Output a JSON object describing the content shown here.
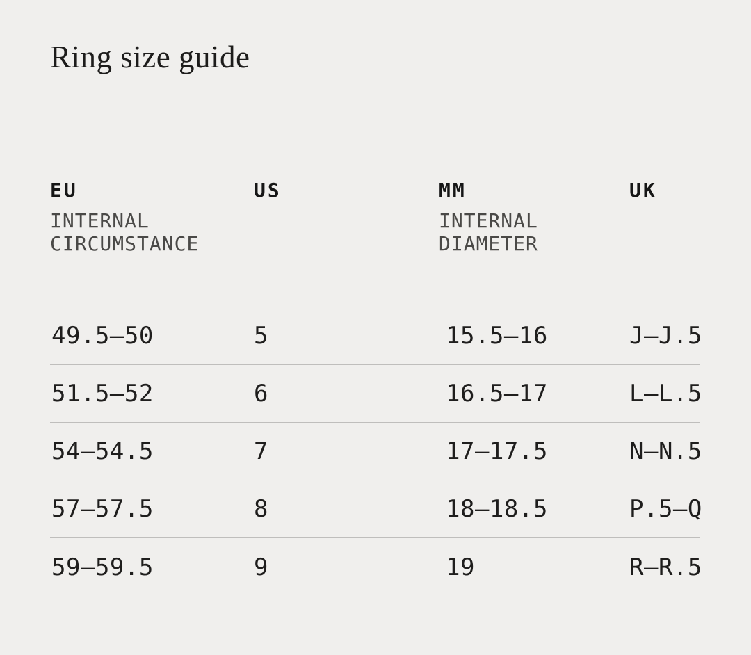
{
  "page": {
    "title": "Ring size guide",
    "background_color": "#f0efed",
    "divider_color": "#bfbebc",
    "text_color": "#1d1c1b"
  },
  "table": {
    "columns": [
      {
        "key": "eu",
        "label": "EU",
        "sublabel": "INTERNAL\nCIRCUMSTANCE"
      },
      {
        "key": "us",
        "label": "US",
        "sublabel": ""
      },
      {
        "key": "mm",
        "label": "MM",
        "sublabel": "INTERNAL\nDIAMETER"
      },
      {
        "key": "uk",
        "label": "UK",
        "sublabel": ""
      }
    ],
    "rows": [
      {
        "eu": "49.5—50",
        "us": "5",
        "mm": "15.5—16",
        "uk": "J—J.5"
      },
      {
        "eu": "51.5—52",
        "us": "6",
        "mm": "16.5—17",
        "uk": "L—L.5"
      },
      {
        "eu": "54—54.5",
        "us": "7",
        "mm": "17—17.5",
        "uk": "N—N.5"
      },
      {
        "eu": "57—57.5",
        "us": "8",
        "mm": "18—18.5",
        "uk": "P.5—Q"
      },
      {
        "eu": "59—59.5",
        "us": "9",
        "mm": "19",
        "uk": "R—R.5"
      }
    ]
  }
}
